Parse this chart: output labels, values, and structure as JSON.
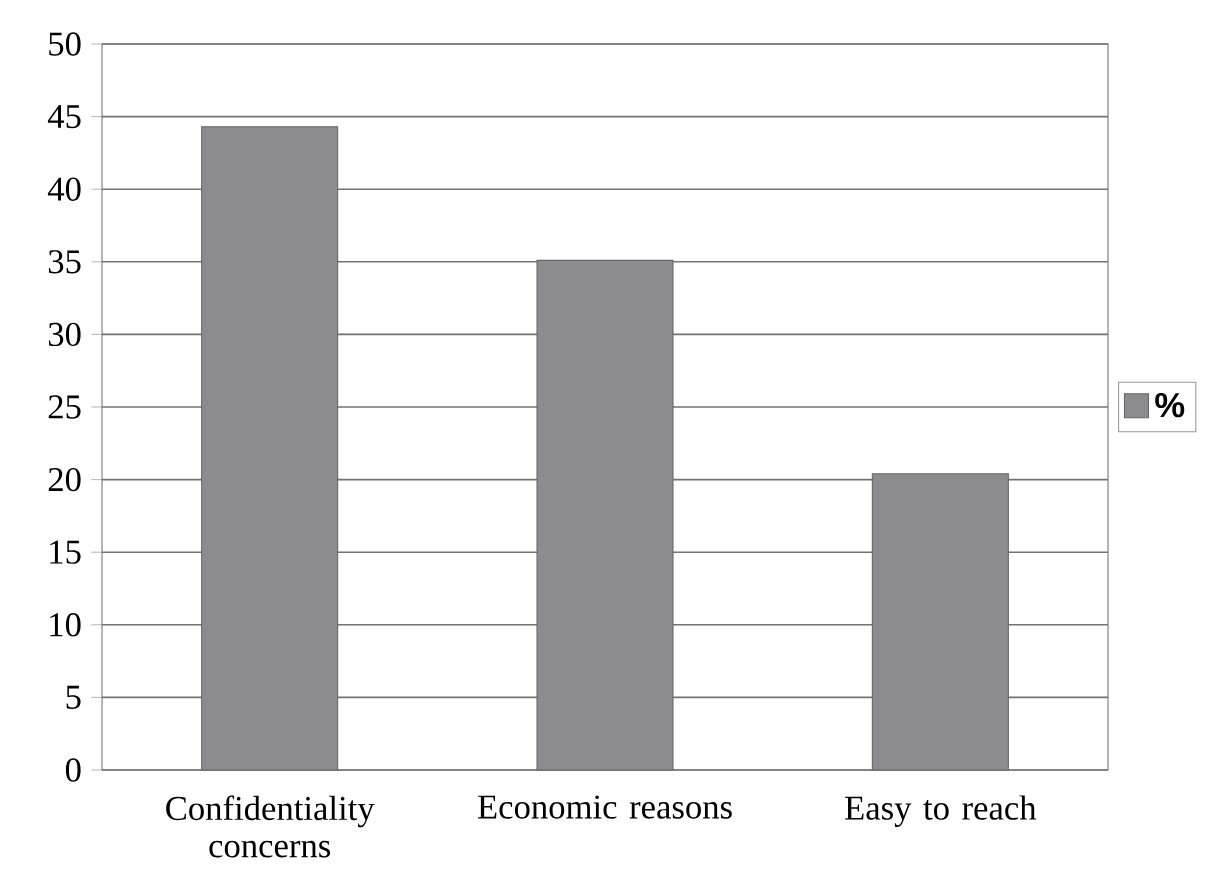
{
  "chart_data": {
    "type": "bar",
    "categories": [
      "Confidentiality concerns",
      "Economic reasons",
      "Easy to reach"
    ],
    "series": [
      {
        "name": "%",
        "color": "#8c8c90",
        "values": [
          44.3,
          35.1,
          20.4
        ]
      }
    ],
    "ylim": [
      0,
      50
    ],
    "yticks": [
      0,
      5,
      10,
      15,
      20,
      25,
      30,
      35,
      40,
      45,
      50
    ],
    "grid": "y",
    "legend": "right"
  }
}
